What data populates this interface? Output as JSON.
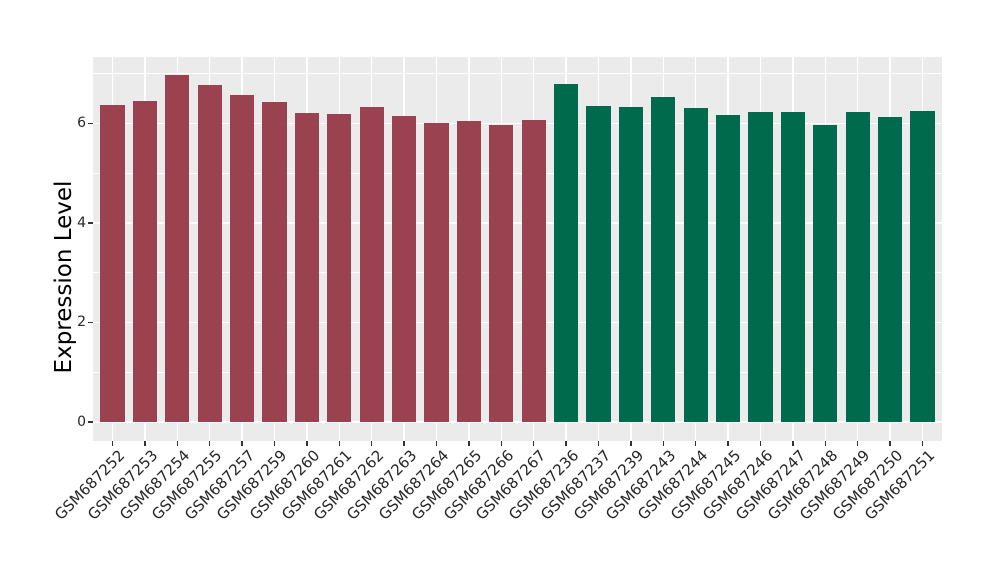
{
  "chart_data": {
    "type": "bar",
    "title": "",
    "xlabel": "",
    "ylabel": "Expression Level",
    "ylim": [
      0,
      7.35
    ],
    "yticks": [
      0,
      2,
      4,
      6
    ],
    "minor_yticks": [
      1,
      3,
      5,
      7
    ],
    "grid": "white major and minor lines on grey panel (ggplot style)",
    "legend_position": "none",
    "categories": [
      "GSM687252",
      "GSM687253",
      "GSM687254",
      "GSM687255",
      "GSM687257",
      "GSM687259",
      "GSM687260",
      "GSM687261",
      "GSM687262",
      "GSM687263",
      "GSM687264",
      "GSM687265",
      "GSM687266",
      "GSM687267",
      "GSM687236",
      "GSM687237",
      "GSM687239",
      "GSM687243",
      "GSM687244",
      "GSM687245",
      "GSM687246",
      "GSM687247",
      "GSM687248",
      "GSM687249",
      "GSM687250",
      "GSM687251"
    ],
    "series": [
      {
        "name": "Expression Level",
        "values": [
          6.36,
          6.45,
          6.98,
          6.76,
          6.57,
          6.43,
          6.21,
          6.18,
          6.33,
          6.15,
          6.01,
          6.04,
          5.96,
          6.06,
          6.78,
          6.35,
          6.33,
          6.53,
          6.3,
          6.16,
          6.23,
          6.23,
          5.96,
          6.23,
          6.12,
          6.25
        ]
      }
    ],
    "bar_groups": [
      {
        "name": "group-maroon",
        "color": "#9B4251",
        "start_index": 0,
        "count": 14
      },
      {
        "name": "group-green",
        "color": "#006B4C",
        "start_index": 14,
        "count": 12
      }
    ],
    "colors": {
      "figure_background": "#FFFFFF",
      "panel_background": "#EBEBEB",
      "gridline": "#FFFFFF",
      "tick_mark": "#333333",
      "axis_text": "#262626",
      "axis_title": "#000000"
    }
  }
}
